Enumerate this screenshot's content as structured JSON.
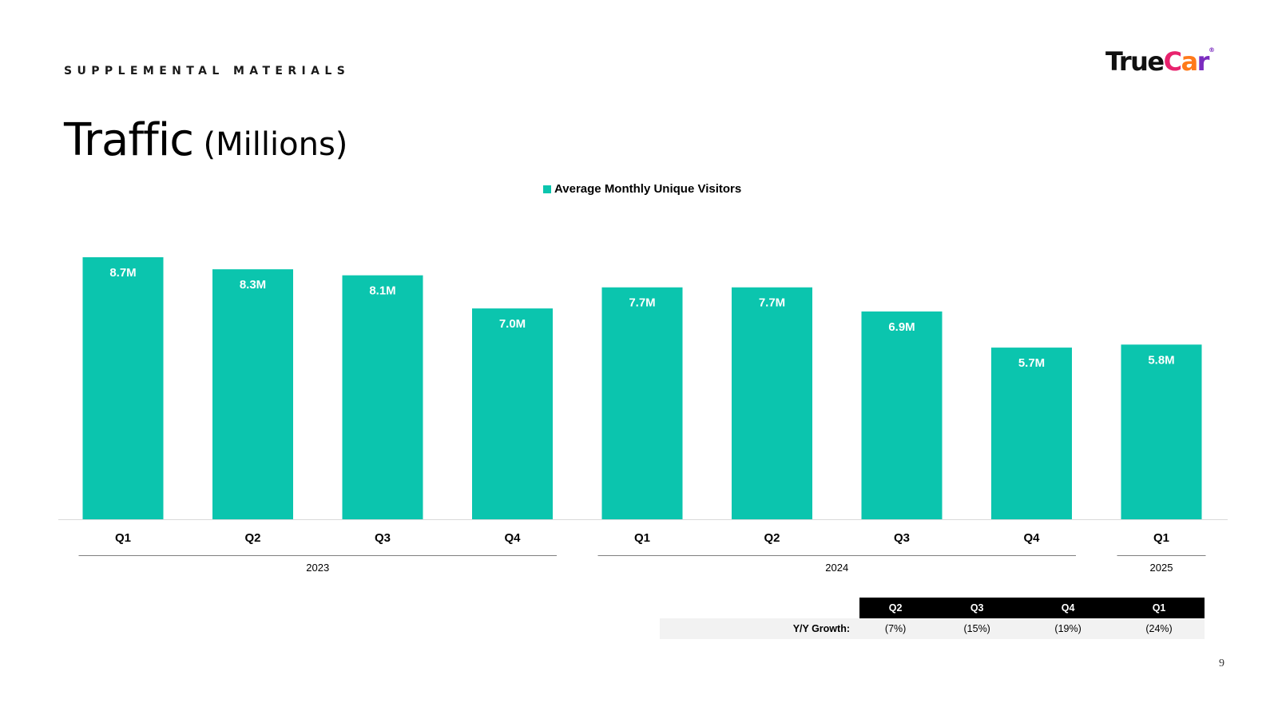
{
  "header": {
    "section": "SUPPLEMENTAL MATERIALS",
    "title": "Traffic",
    "title_unit": "(Millions)",
    "page_number": "9"
  },
  "logo": {
    "text_true": "True",
    "text_c": "C",
    "text_a": "a",
    "text_r": "r",
    "reg": "®"
  },
  "colors": {
    "bar": "#0bc5ae",
    "axis": "#d9d9d9",
    "group_line": "#7f7f7f"
  },
  "chart_data": {
    "type": "bar",
    "categories": [
      "Q1",
      "Q2",
      "Q3",
      "Q4",
      "Q1",
      "Q2",
      "Q3",
      "Q4",
      "Q1"
    ],
    "groups": [
      {
        "label": "2023",
        "start": 0,
        "end": 3
      },
      {
        "label": "2024",
        "start": 4,
        "end": 7
      },
      {
        "label": "2025",
        "start": 8,
        "end": 8
      }
    ],
    "series": [
      {
        "name": "Average Monthly Unique Visitors",
        "values": [
          8.7,
          8.3,
          8.1,
          7.0,
          7.7,
          7.7,
          6.9,
          5.7,
          5.8
        ],
        "labels": [
          "8.7M",
          "8.3M",
          "8.1M",
          "7.0M",
          "7.7M",
          "7.7M",
          "6.9M",
          "5.7M",
          "5.8M"
        ]
      }
    ],
    "legend_position": "top-center",
    "grid": false,
    "ylim": [
      0,
      8.7
    ]
  },
  "yy_table": {
    "label": "Y/Y Growth:",
    "quarters": [
      "Q2",
      "Q3",
      "Q4",
      "Q1"
    ],
    "values": [
      "(7%)",
      "(15%)",
      "(19%)",
      "(24%)"
    ]
  }
}
